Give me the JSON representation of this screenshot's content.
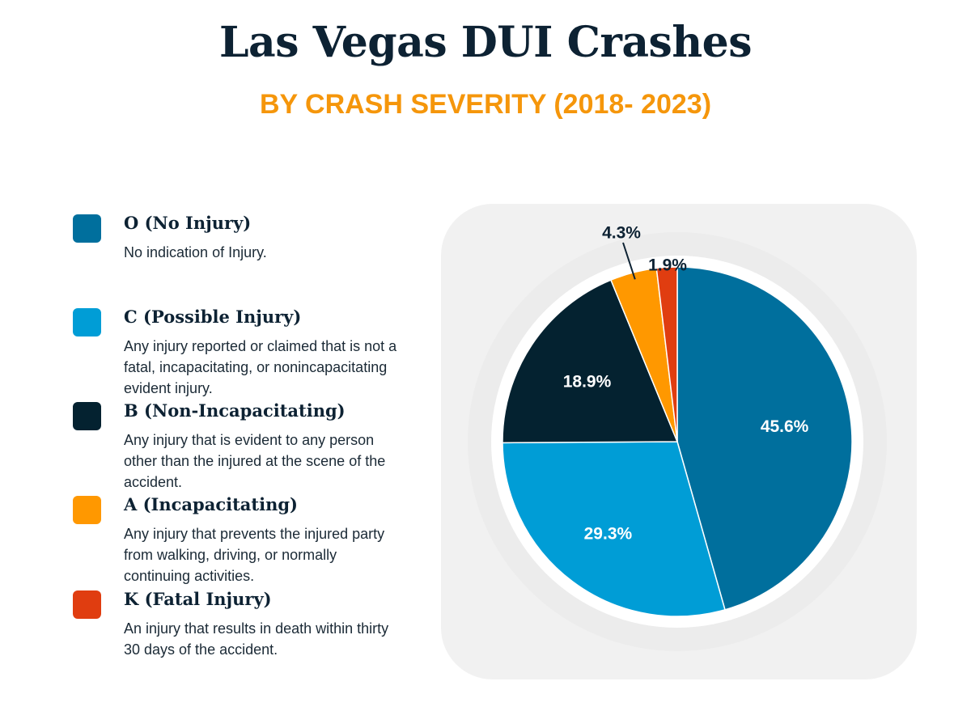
{
  "title": "Las Vegas DUI Crashes",
  "subtitle": "BY CRASH SEVERITY (2018- 2023)",
  "legend": [
    {
      "label": "O (No Injury)",
      "description": "No indication of Injury.",
      "color": "#006f9d"
    },
    {
      "label": "C (Possible Injury)",
      "description": "Any injury reported or claimed that is not a fatal, incapacitating, or nonincapacitating evident injury.",
      "color": "#009dd6"
    },
    {
      "label": "B (Non-Incapacitating)",
      "description": "Any injury that is evident to any person other than the injured at the scene of the accident.",
      "color": "#042230"
    },
    {
      "label": "A (Incapacitating)",
      "description": "Any injury that prevents the injured party from walking, driving, or normally continuing activities.",
      "color": "#ff9800"
    },
    {
      "label": "K (Fatal Injury)",
      "description": "An injury that results in death within thirty 30 days of the accident.",
      "color": "#e03d10"
    }
  ],
  "chart_data": {
    "type": "pie",
    "title": "Las Vegas DUI Crashes",
    "subtitle": "BY CRASH SEVERITY (2018- 2023)",
    "categories": [
      "O (No Injury)",
      "C (Possible Injury)",
      "B (Non-Incapacitating)",
      "A (Incapacitating)",
      "K (Fatal Injury)"
    ],
    "values": [
      45.6,
      29.3,
      18.9,
      4.3,
      1.9
    ],
    "labels": [
      "45.6%",
      "29.3%",
      "18.9%",
      "4.3%",
      "1.9%"
    ],
    "colors": [
      "#006f9d",
      "#009dd6",
      "#042230",
      "#ff9800",
      "#e03d10"
    ],
    "start_angle": "12 o'clock",
    "direction": "clockwise"
  }
}
